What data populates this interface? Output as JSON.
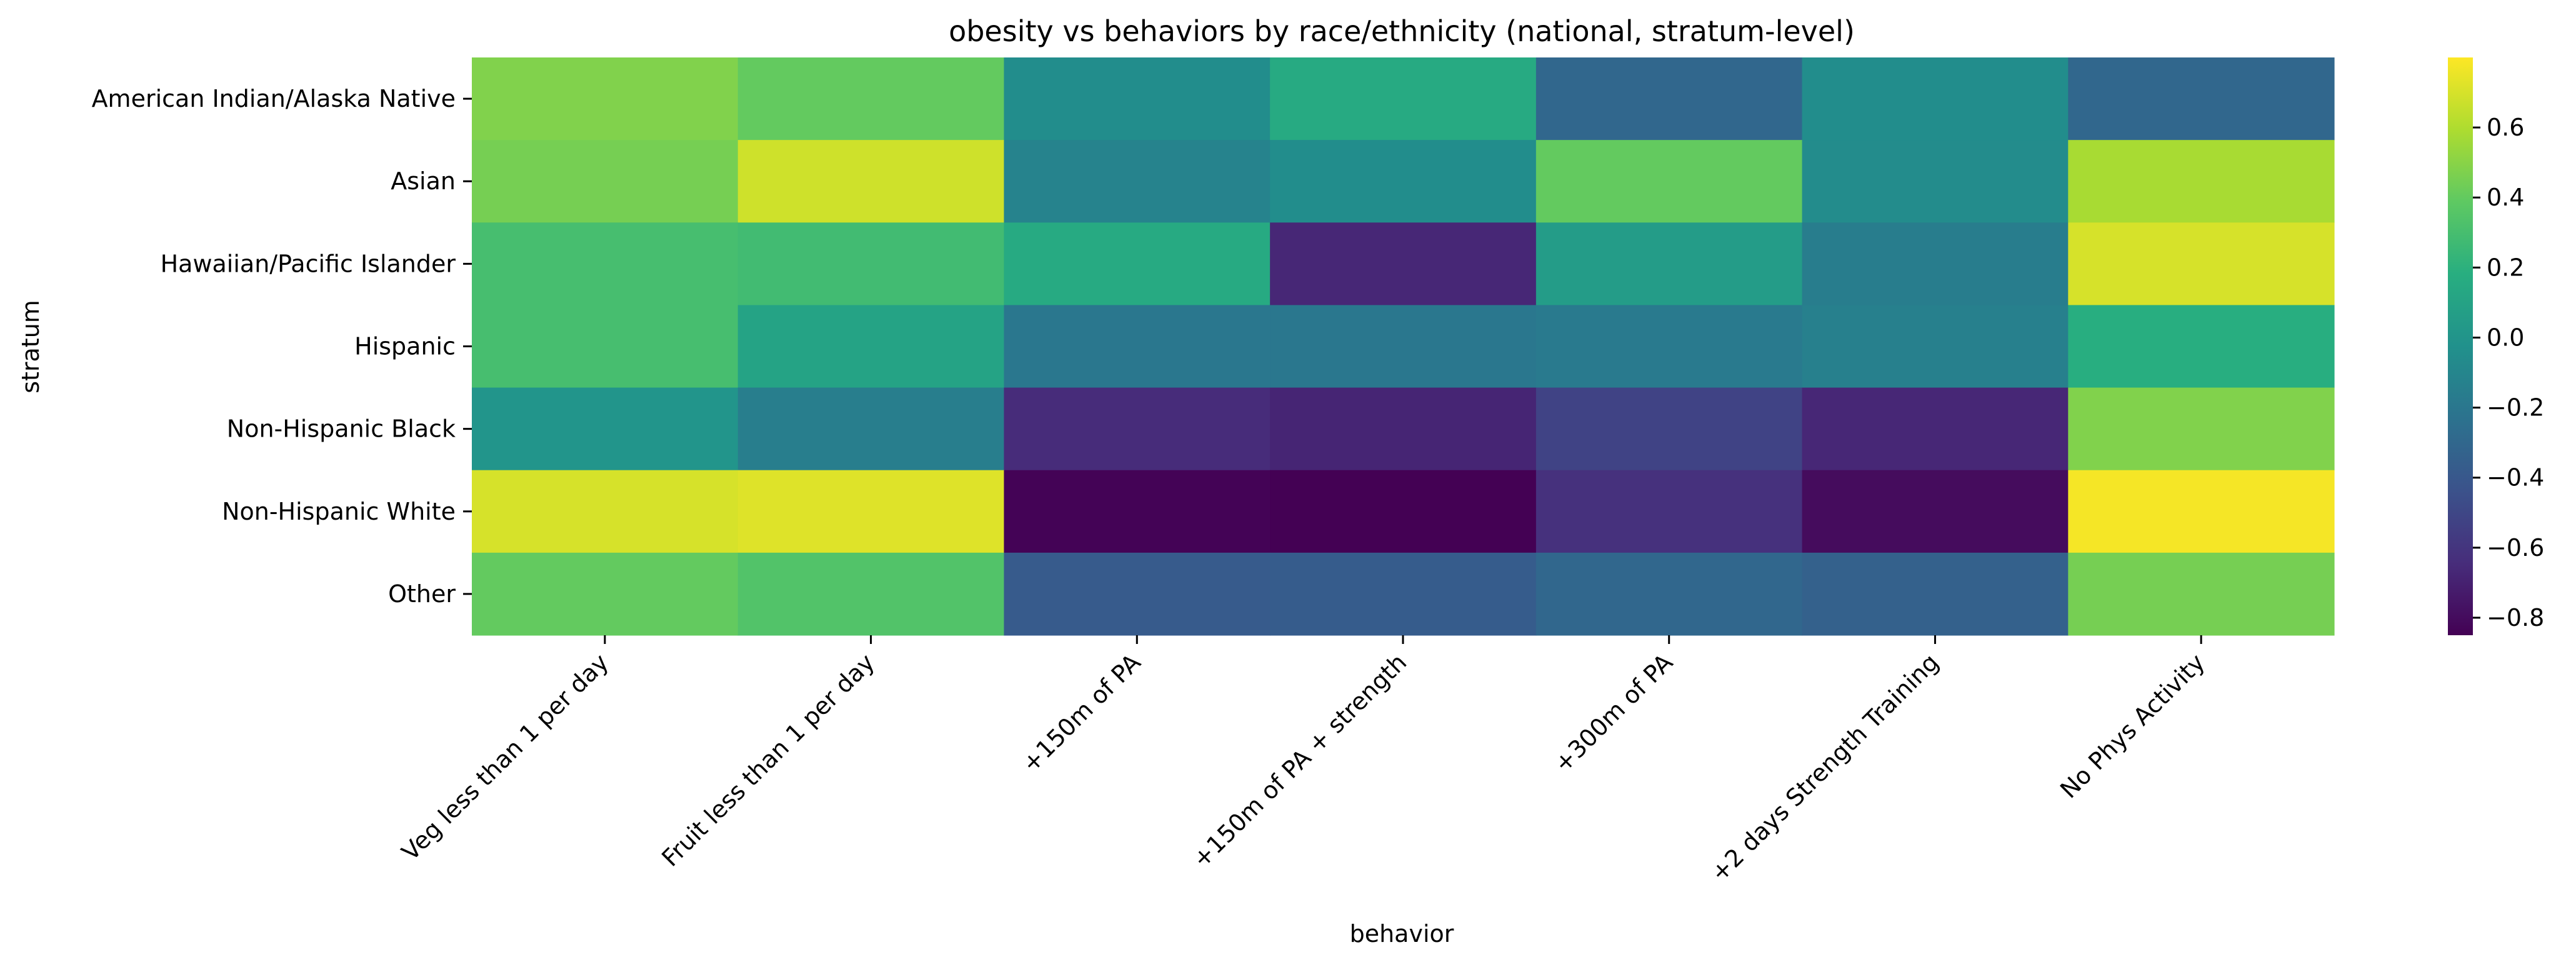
{
  "chart_data": {
    "type": "heatmap",
    "title": "obesity vs behaviors by race/ethnicity (national, stratum-level)",
    "xlabel": "behavior",
    "ylabel": "stratum",
    "x_categories": [
      "Veg less than 1 per day",
      "Fruit less than 1 per day",
      "+150m of PA",
      "+150m of PA + strength",
      "+300m of PA",
      "+2 days Strength Training",
      "No Phys Activity"
    ],
    "y_categories": [
      "American Indian/Alaska Native",
      "Asian",
      "Hawaiian/Pacific Islander",
      "Hispanic",
      "Non-Hispanic Black",
      "Non-Hispanic White",
      "Other"
    ],
    "values": [
      [
        0.48,
        0.4,
        -0.05,
        0.15,
        -0.3,
        -0.05,
        -0.3
      ],
      [
        0.45,
        0.68,
        -0.12,
        -0.05,
        0.4,
        -0.06,
        0.58
      ],
      [
        0.3,
        0.28,
        0.15,
        -0.67,
        0.05,
        -0.16,
        0.7
      ],
      [
        0.3,
        0.1,
        -0.2,
        -0.2,
        -0.18,
        -0.14,
        0.18
      ],
      [
        0.0,
        -0.15,
        -0.65,
        -0.68,
        -0.52,
        -0.67,
        0.48
      ],
      [
        0.7,
        0.72,
        -0.84,
        -0.85,
        -0.62,
        -0.8,
        0.78
      ],
      [
        0.4,
        0.34,
        -0.38,
        -0.37,
        -0.3,
        -0.34,
        0.45
      ]
    ],
    "colormap": "viridis",
    "vmin": -0.85,
    "vmax": 0.8,
    "colorbar_ticks": [
      0.6,
      0.4,
      0.2,
      0.0,
      -0.2,
      -0.4,
      -0.6,
      -0.8
    ],
    "colorbar_tick_labels": [
      "0.6",
      "0.4",
      "0.2",
      "0.0",
      "−0.2",
      "−0.4",
      "−0.6",
      "−0.8"
    ]
  }
}
